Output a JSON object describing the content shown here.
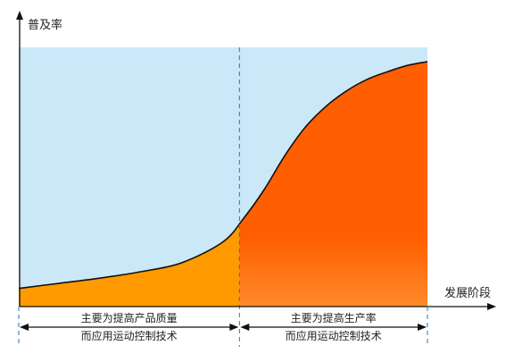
{
  "chart_data": {
    "type": "area",
    "ylabel": "普及率",
    "xlabel": "发展阶段",
    "xlim": [
      0,
      100
    ],
    "ylim": [
      0,
      100
    ],
    "curve": {
      "x": [
        0,
        10,
        20,
        30,
        40,
        50,
        55,
        60,
        65,
        70,
        75,
        80,
        85,
        90,
        95,
        100
      ],
      "y": [
        7,
        9,
        11,
        13.5,
        17,
        25,
        34,
        45,
        58,
        69,
        77,
        83,
        87.5,
        90.5,
        93,
        94.5
      ]
    },
    "divider_x": 54,
    "phases": [
      {
        "line1": "主要为提高产品质量",
        "line2": "而应用运动控制技术"
      },
      {
        "line1": "主要为提高生产率",
        "line2": "而应用运动控制技术"
      }
    ],
    "colors": {
      "background": "#cbe8f8",
      "phase1_fill": "#ff9a00",
      "phase2_fill_top": "#ff5f00",
      "phase2_fill_bottom": "#ff8a2a",
      "curve": "#111111",
      "divider": "#2a72b8",
      "axis": "#111111"
    }
  }
}
